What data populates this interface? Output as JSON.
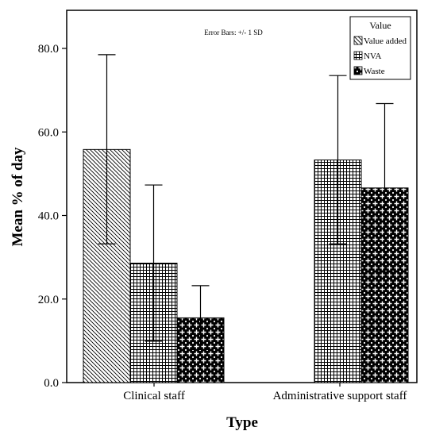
{
  "chart_data": {
    "type": "bar",
    "categories": [
      "Clinical staff",
      "Administrative support staff"
    ],
    "series": [
      {
        "name": "Value added",
        "values": [
          55.8,
          null
        ],
        "sd_low": [
          33.2,
          null
        ],
        "sd_high": [
          78.5,
          null
        ],
        "pattern": "diagonal-hatch"
      },
      {
        "name": "NVA",
        "values": [
          28.6,
          53.3
        ],
        "sd_low": [
          9.9,
          33.2
        ],
        "sd_high": [
          47.3,
          73.5
        ],
        "pattern": "grid"
      },
      {
        "name": "Waste",
        "values": [
          15.5,
          46.6
        ],
        "sd_low": [
          7.9,
          26.5
        ],
        "sd_high": [
          23.2,
          66.8
        ],
        "pattern": "cross-dots"
      }
    ],
    "xlabel": "Type",
    "ylabel": "Mean % of day",
    "ylim": [
      0,
      80
    ],
    "yticks": [
      "0.0",
      "20.0",
      "40.0",
      "60.0",
      "80.0"
    ],
    "ytick_values": [
      0,
      20,
      40,
      60,
      80
    ],
    "legend": {
      "title": "Value",
      "position": "top-right"
    },
    "annotation": "Error Bars: +/- 1 SD",
    "grid": false
  }
}
